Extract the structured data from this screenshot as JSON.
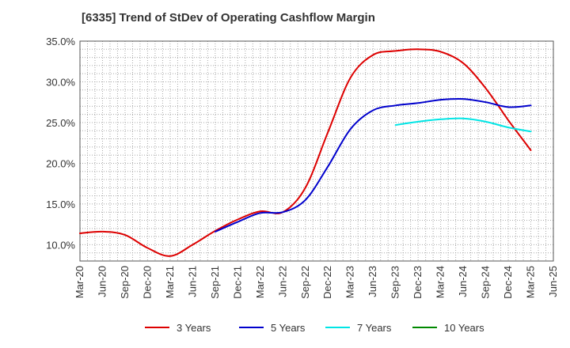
{
  "chart_data": {
    "type": "line",
    "title": "[6335]  Trend of StDev of Operating Cashflow Margin",
    "xlabel": "",
    "ylabel": "",
    "x_ticks": [
      "Mar-20",
      "Jun-20",
      "Sep-20",
      "Dec-20",
      "Mar-21",
      "Jun-21",
      "Sep-21",
      "Dec-21",
      "Mar-22",
      "Jun-22",
      "Sep-22",
      "Dec-22",
      "Mar-23",
      "Jun-23",
      "Sep-23",
      "Dec-23",
      "Mar-24",
      "Jun-24",
      "Sep-24",
      "Dec-24",
      "Mar-25",
      "Jun-25"
    ],
    "y_ticks": [
      "10.0%",
      "15.0%",
      "20.0%",
      "25.0%",
      "30.0%",
      "35.0%"
    ],
    "ylim": [
      8.0,
      35.0
    ],
    "grid": true,
    "legend_position": "bottom",
    "series": [
      {
        "name": "3 Years",
        "color": "#dd0000",
        "points": [
          [
            "Mar-20",
            11.4
          ],
          [
            "Jun-20",
            11.6
          ],
          [
            "Sep-20",
            11.2
          ],
          [
            "Dec-20",
            9.6
          ],
          [
            "Mar-21",
            8.6
          ],
          [
            "Jun-21",
            10.0
          ],
          [
            "Sep-21",
            11.7
          ],
          [
            "Dec-21",
            13.1
          ],
          [
            "Mar-22",
            14.1
          ],
          [
            "Jun-22",
            14.0
          ],
          [
            "Sep-22",
            17.0
          ],
          [
            "Dec-22",
            23.8
          ],
          [
            "Mar-23",
            30.5
          ],
          [
            "Jun-23",
            33.3
          ],
          [
            "Sep-23",
            33.8
          ],
          [
            "Dec-23",
            34.0
          ],
          [
            "Mar-24",
            33.7
          ],
          [
            "Jun-24",
            32.3
          ],
          [
            "Sep-24",
            29.2
          ],
          [
            "Dec-24",
            25.3
          ],
          [
            "Mar-25",
            21.6
          ]
        ]
      },
      {
        "name": "5 Years",
        "color": "#0000cc",
        "points": [
          [
            "Sep-21",
            11.6
          ],
          [
            "Dec-21",
            12.8
          ],
          [
            "Mar-22",
            13.9
          ],
          [
            "Jun-22",
            14.0
          ],
          [
            "Sep-22",
            15.5
          ],
          [
            "Dec-22",
            19.6
          ],
          [
            "Mar-23",
            24.2
          ],
          [
            "Jun-23",
            26.5
          ],
          [
            "Sep-23",
            27.1
          ],
          [
            "Dec-23",
            27.4
          ],
          [
            "Mar-24",
            27.8
          ],
          [
            "Jun-24",
            27.9
          ],
          [
            "Sep-24",
            27.5
          ],
          [
            "Dec-24",
            26.9
          ],
          [
            "Mar-25",
            27.1
          ]
        ]
      },
      {
        "name": "7 Years",
        "color": "#00e5e5",
        "points": [
          [
            "Sep-23",
            24.7
          ],
          [
            "Dec-23",
            25.1
          ],
          [
            "Mar-24",
            25.4
          ],
          [
            "Jun-24",
            25.5
          ],
          [
            "Sep-24",
            25.1
          ],
          [
            "Dec-24",
            24.4
          ],
          [
            "Mar-25",
            23.9
          ]
        ]
      },
      {
        "name": "10 Years",
        "color": "#008800",
        "points": []
      }
    ]
  }
}
